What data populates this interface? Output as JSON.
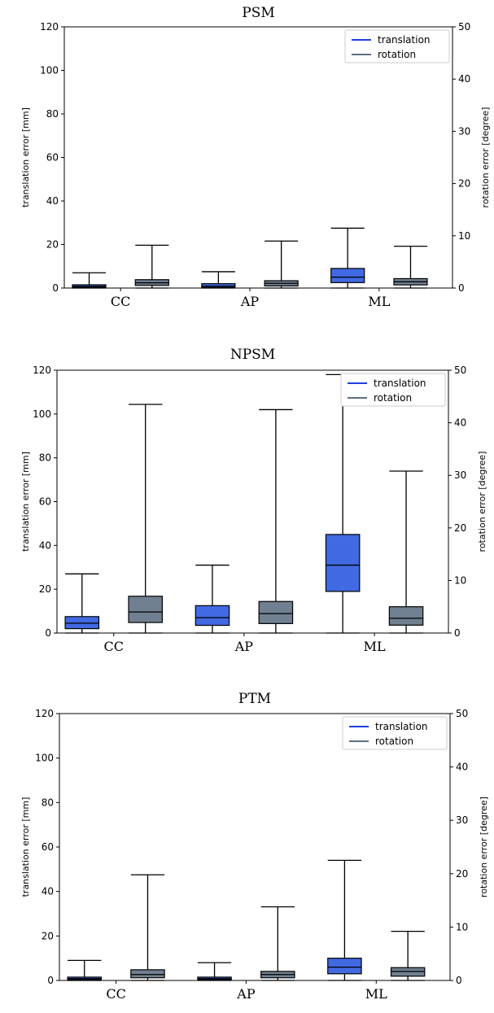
{
  "colors": {
    "translation": "#4169e1",
    "rotation": "#708090",
    "translation_legend_line": "#1f3ee0",
    "rotation_legend_line": "#607080"
  },
  "chart_data": [
    {
      "type": "box",
      "title": "PSM",
      "categories": [
        "CC",
        "AP",
        "ML"
      ],
      "ylabel": "translation error [mm]",
      "ylabel_right": "rotation error [degree]",
      "ylim": [
        0,
        120
      ],
      "ylim_right": [
        0,
        50
      ],
      "yticks": [
        0,
        20,
        40,
        60,
        80,
        100,
        120
      ],
      "yticks_right": [
        0,
        10,
        20,
        30,
        40,
        50
      ],
      "grid": false,
      "legend": {
        "position": "top-right",
        "entries": [
          "translation",
          "rotation"
        ]
      },
      "series": [
        {
          "name": "translation",
          "axis": "left",
          "boxes": [
            {
              "category": "CC",
              "whislo": 0,
              "q1": 0.3,
              "med": 0.8,
              "q3": 1.5,
              "whishi": 7
            },
            {
              "category": "AP",
              "whislo": 0,
              "q1": 0.3,
              "med": 0.9,
              "q3": 2,
              "whishi": 7.5
            },
            {
              "category": "ML",
              "whislo": 0,
              "q1": 2.5,
              "med": 5,
              "q3": 9,
              "whishi": 27.5
            }
          ]
        },
        {
          "name": "rotation",
          "axis": "right",
          "boxes": [
            {
              "category": "CC",
              "whislo": 0,
              "q1": 0.5,
              "med": 1,
              "q3": 1.6,
              "whishi": 8.2
            },
            {
              "category": "AP",
              "whislo": 0,
              "q1": 0.4,
              "med": 0.9,
              "q3": 1.4,
              "whishi": 9
            },
            {
              "category": "ML",
              "whislo": 0,
              "q1": 0.6,
              "med": 1.2,
              "q3": 1.8,
              "whishi": 8
            }
          ]
        }
      ]
    },
    {
      "type": "box",
      "title": "NPSM",
      "categories": [
        "CC",
        "AP",
        "ML"
      ],
      "ylabel": "translation error [mm]",
      "ylabel_right": "rotation error [degree]",
      "ylim": [
        0,
        120
      ],
      "ylim_right": [
        0,
        50
      ],
      "yticks": [
        0,
        20,
        40,
        60,
        80,
        100,
        120
      ],
      "yticks_right": [
        0,
        10,
        20,
        30,
        40,
        50
      ],
      "grid": false,
      "legend": {
        "position": "top-right",
        "entries": [
          "translation",
          "rotation"
        ]
      },
      "series": [
        {
          "name": "translation",
          "axis": "left",
          "boxes": [
            {
              "category": "CC",
              "whislo": 0,
              "q1": 2,
              "med": 4.5,
              "q3": 7.5,
              "whishi": 27
            },
            {
              "category": "AP",
              "whislo": 0,
              "q1": 3.5,
              "med": 7,
              "q3": 12.5,
              "whishi": 31
            },
            {
              "category": "ML",
              "whislo": 0,
              "q1": 19,
              "med": 31,
              "q3": 45,
              "whishi": 118
            }
          ]
        },
        {
          "name": "rotation",
          "axis": "right",
          "boxes": [
            {
              "category": "CC",
              "whislo": 0,
              "q1": 2,
              "med": 4,
              "q3": 7,
              "whishi": 43.5
            },
            {
              "category": "AP",
              "whislo": 0,
              "q1": 1.8,
              "med": 3.7,
              "q3": 6,
              "whishi": 42.5
            },
            {
              "category": "ML",
              "whislo": 0,
              "q1": 1.5,
              "med": 2.8,
              "q3": 5,
              "whishi": 30.8
            }
          ]
        }
      ]
    },
    {
      "type": "box",
      "title": "PTM",
      "categories": [
        "CC",
        "AP",
        "ML"
      ],
      "ylabel": "translation error [mm]",
      "ylabel_right": "rotation error [degree]",
      "ylim": [
        0,
        120
      ],
      "ylim_right": [
        0,
        50
      ],
      "yticks": [
        0,
        20,
        40,
        60,
        80,
        100,
        120
      ],
      "yticks_right": [
        0,
        10,
        20,
        30,
        40,
        50
      ],
      "grid": false,
      "legend": {
        "position": "top-right",
        "entries": [
          "translation",
          "rotation"
        ]
      },
      "series": [
        {
          "name": "translation",
          "axis": "left",
          "boxes": [
            {
              "category": "CC",
              "whislo": 0,
              "q1": 0.3,
              "med": 0.8,
              "q3": 1.5,
              "whishi": 9
            },
            {
              "category": "AP",
              "whislo": 0,
              "q1": 0.3,
              "med": 0.8,
              "q3": 1.5,
              "whishi": 8
            },
            {
              "category": "ML",
              "whislo": 0,
              "q1": 3,
              "med": 6,
              "q3": 10,
              "whishi": 54
            }
          ]
        },
        {
          "name": "rotation",
          "axis": "right",
          "boxes": [
            {
              "category": "CC",
              "whislo": 0,
              "q1": 0.5,
              "med": 1.1,
              "q3": 2,
              "whishi": 19.8
            },
            {
              "category": "AP",
              "whislo": 0,
              "q1": 0.5,
              "med": 1.1,
              "q3": 1.7,
              "whishi": 13.8
            },
            {
              "category": "ML",
              "whislo": 0,
              "q1": 0.8,
              "med": 1.7,
              "q3": 2.4,
              "whishi": 9.2
            }
          ]
        }
      ]
    }
  ]
}
